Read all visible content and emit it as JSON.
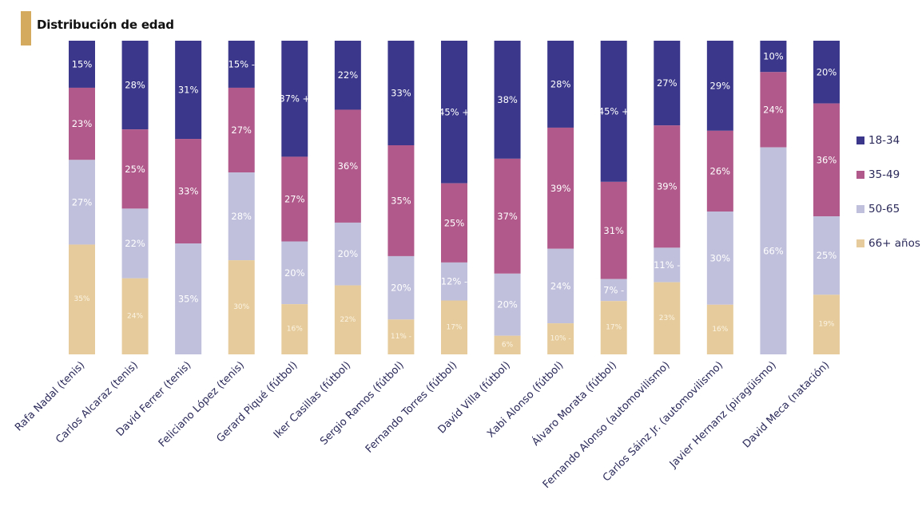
{
  "header": {
    "title": "Distribución de edad",
    "accent_color": "#d3aa5e"
  },
  "chart_data": {
    "type": "bar",
    "stacked": true,
    "title": "Distribución de edad",
    "xlabel": "",
    "ylabel": "",
    "ylim": [
      0,
      100
    ],
    "grid": false,
    "legend_position": "right",
    "categories": [
      "Rafa Nadal (tenis)",
      "Carlos Alcaraz (tenis)",
      "David Ferrer (tenis)",
      "Feliciano López (tenis)",
      "Gerard Piqué (fútbol)",
      "Iker Casillas (fútbol)",
      "Sergio Ramos (fútbol)",
      "Fernando Torres (fútbol)",
      "David Villa (fútbol)",
      "Xabi Alonso (fútbol)",
      "Álvaro Morata (fútbol)",
      "Fernando Alonso (automovilismo)",
      "Carlos Sáinz Jr. (automovilismo)",
      "Javier Hernanz (piragüismo)",
      "David Meca (natación)"
    ],
    "series": [
      {
        "name": "18-34",
        "color": "#3b388b",
        "values": [
          15,
          28,
          31,
          15,
          37,
          22,
          33,
          45,
          38,
          28,
          45,
          27,
          29,
          10,
          20
        ],
        "labels": [
          "15%",
          "28%",
          "31%",
          "15% -",
          "37% +",
          "22%",
          "33%",
          "45% +",
          "38%",
          "28%",
          "45% +",
          "27%",
          "29%",
          "10%",
          "20%"
        ]
      },
      {
        "name": "35-49",
        "color": "#b0598a",
        "values": [
          23,
          25,
          33,
          27,
          27,
          36,
          35,
          25,
          37,
          39,
          31,
          39,
          26,
          24,
          36
        ],
        "labels": [
          "23%",
          "25%",
          "33%",
          "27%",
          "27%",
          "36%",
          "35%",
          "25%",
          "37%",
          "39%",
          "31%",
          "39%",
          "26%",
          "24%",
          "36%"
        ]
      },
      {
        "name": "50-65",
        "color": "#c0c0dc",
        "values": [
          27,
          22,
          35,
          28,
          20,
          20,
          20,
          12,
          20,
          24,
          7,
          11,
          30,
          66,
          25
        ],
        "labels": [
          "27%",
          "22%",
          "35%",
          "28%",
          "20%",
          "20%",
          "20%",
          "12% -",
          "20%",
          "24%",
          "7% -",
          "11% -",
          "30%",
          "66%",
          "25%"
        ]
      },
      {
        "name": "66+ años",
        "color": "#e6cc9c",
        "values": [
          35,
          24,
          0,
          30,
          16,
          22,
          11,
          17,
          6,
          10,
          17,
          23,
          16,
          0,
          19
        ],
        "labels": [
          "35%",
          "24%",
          "",
          "30%",
          "16%",
          "22%",
          "11% -",
          "17%",
          "6%",
          "10% -",
          "17%",
          "23%",
          "16%",
          "",
          "19%"
        ]
      }
    ]
  },
  "legend": {
    "items": [
      {
        "label": "18-34",
        "color": "#3b388b"
      },
      {
        "label": "35-49",
        "color": "#b0598a"
      },
      {
        "label": "50-65",
        "color": "#c0c0dc"
      },
      {
        "label": "66+ años",
        "color": "#e6cc9c"
      }
    ]
  }
}
